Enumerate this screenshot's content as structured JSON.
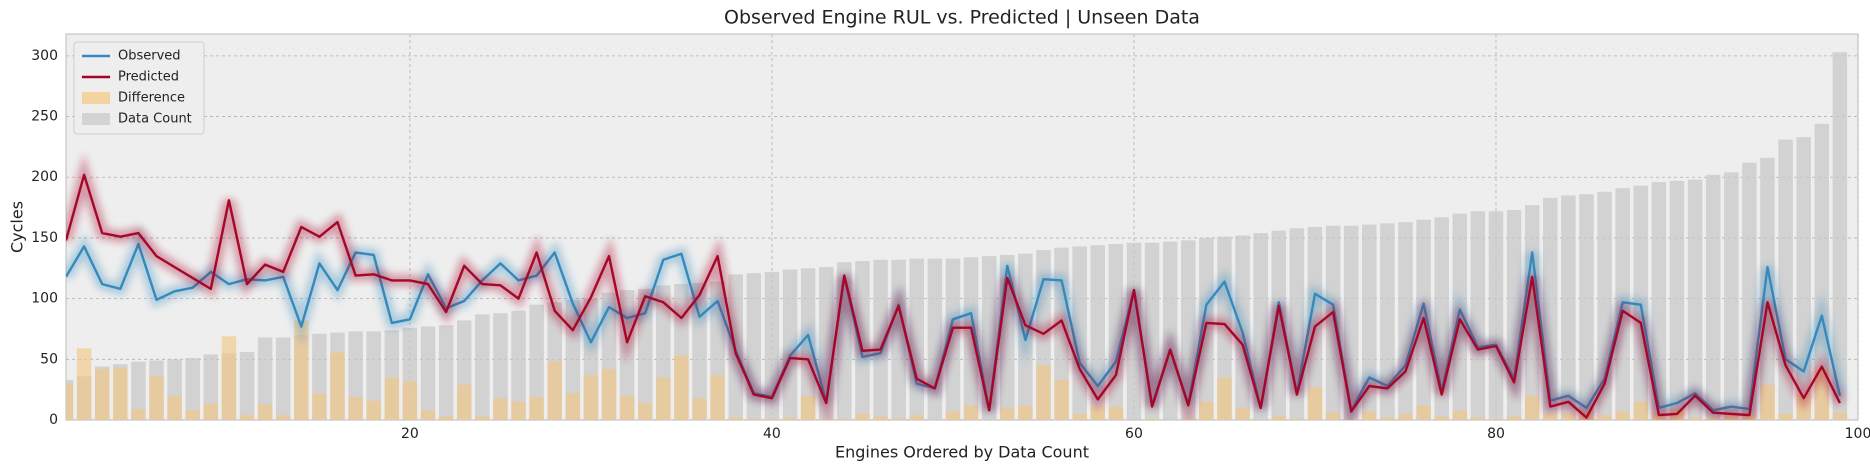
{
  "chart_data": {
    "type": "line",
    "title": "Observed Engine RUL vs. Predicted | Unseen Data",
    "xlabel": "Engines Ordered by Data Count",
    "ylabel": "Cycles",
    "x": [
      1,
      2,
      3,
      4,
      5,
      6,
      7,
      8,
      9,
      10,
      11,
      12,
      13,
      14,
      15,
      16,
      17,
      18,
      19,
      20,
      21,
      22,
      23,
      24,
      25,
      26,
      27,
      28,
      29,
      30,
      31,
      32,
      33,
      34,
      35,
      36,
      37,
      38,
      39,
      40,
      41,
      42,
      43,
      44,
      45,
      46,
      47,
      48,
      49,
      50,
      51,
      52,
      53,
      54,
      55,
      56,
      57,
      58,
      59,
      60,
      61,
      62,
      63,
      64,
      65,
      66,
      67,
      68,
      69,
      70,
      71,
      72,
      73,
      74,
      75,
      76,
      77,
      78,
      79,
      80,
      81,
      82,
      83,
      84,
      85,
      86,
      87,
      88,
      89,
      90,
      91,
      92,
      93,
      94,
      95,
      96,
      97,
      98,
      99
    ],
    "xlim": [
      1,
      100
    ],
    "xticks": [
      20,
      40,
      60,
      80,
      100
    ],
    "ylim": [
      0,
      318
    ],
    "yticks": [
      0,
      50,
      100,
      150,
      200,
      250,
      300
    ],
    "grid": true,
    "legend": "upper left",
    "series": [
      {
        "name": "Observed",
        "type": "line",
        "color": "#348ABD",
        "values": [
          118,
          143,
          112,
          108,
          145,
          99,
          106,
          109,
          122,
          112,
          116,
          115,
          118,
          77,
          129,
          107,
          138,
          136,
          80,
          83,
          120,
          92,
          98,
          115,
          129,
          115,
          119,
          138,
          96,
          64,
          93,
          84,
          88,
          132,
          137,
          85,
          98,
          57,
          22,
          19,
          53,
          70,
          15,
          118,
          52,
          55,
          95,
          30,
          26,
          83,
          88,
          8,
          127,
          66,
          116,
          115,
          47,
          28,
          48,
          107,
          12,
          58,
          13,
          95,
          114,
          72,
          10,
          97,
          22,
          104,
          95,
          8,
          35,
          28,
          45,
          96,
          24,
          91,
          60,
          62,
          34,
          138,
          16,
          20,
          10,
          34,
          97,
          95,
          10,
          14,
          22,
          8,
          11,
          9,
          126,
          50,
          40,
          86,
          20
        ]
      },
      {
        "name": "Predicted",
        "type": "line",
        "color": "#A60628",
        "values": [
          148,
          202,
          154,
          151,
          154,
          135,
          126,
          117,
          108,
          181,
          112,
          128,
          122,
          159,
          151,
          163,
          119,
          120,
          115,
          115,
          112,
          89,
          127,
          112,
          111,
          100,
          138,
          90,
          74,
          101,
          135,
          64,
          102,
          97,
          84,
          103,
          135,
          55,
          21,
          18,
          51,
          50,
          14,
          119,
          57,
          58,
          94,
          34,
          26,
          76,
          76,
          8,
          117,
          78,
          71,
          82,
          42,
          17,
          37,
          107,
          11,
          58,
          12,
          80,
          79,
          62,
          10,
          94,
          21,
          77,
          89,
          7,
          28,
          26,
          40,
          84,
          21,
          83,
          58,
          61,
          31,
          118,
          11,
          15,
          2,
          30,
          90,
          80,
          4,
          5,
          20,
          6,
          5,
          4,
          97,
          45,
          18,
          44,
          14
        ]
      },
      {
        "name": "Difference",
        "type": "bar",
        "color": "#F5C77E",
        "values": [
          30,
          59,
          42,
          43,
          9,
          36,
          20,
          8,
          14,
          69,
          4,
          13,
          4,
          82,
          22,
          56,
          19,
          16,
          35,
          32,
          8,
          3,
          29,
          3,
          18,
          15,
          19,
          48,
          22,
          37,
          42,
          20,
          14,
          35,
          53,
          18,
          37,
          2,
          1,
          1,
          2,
          20,
          1,
          1,
          5,
          3,
          1,
          4,
          0,
          7,
          12,
          0,
          10,
          12,
          45,
          33,
          5,
          11,
          11,
          0,
          1,
          0,
          1,
          15,
          35,
          10,
          0,
          3,
          1,
          27,
          6,
          1,
          7,
          2,
          5,
          12,
          3,
          8,
          2,
          1,
          3,
          20,
          5,
          5,
          8,
          4,
          7,
          15,
          6,
          9,
          2,
          2,
          6,
          5,
          29,
          5,
          22,
          42,
          6
        ]
      },
      {
        "name": "Data Count",
        "type": "bar",
        "color": "#C8C8C8",
        "values": [
          33,
          36,
          44,
          46,
          48,
          49,
          50,
          51,
          54,
          55,
          56,
          68,
          68,
          70,
          71,
          72,
          73,
          73,
          74,
          76,
          77,
          78,
          82,
          87,
          88,
          90,
          95,
          97,
          99,
          100,
          105,
          107,
          108,
          111,
          112,
          113,
          114,
          120,
          121,
          122,
          124,
          125,
          126,
          130,
          131,
          132,
          132,
          133,
          133,
          133,
          134,
          135,
          136,
          137,
          140,
          142,
          143,
          144,
          145,
          146,
          146,
          147,
          148,
          150,
          151,
          152,
          154,
          156,
          158,
          159,
          160,
          160,
          161,
          162,
          163,
          165,
          167,
          170,
          172,
          172,
          173,
          177,
          183,
          185,
          186,
          188,
          191,
          193,
          196,
          197,
          198,
          202,
          204,
          212,
          216,
          231,
          233,
          244,
          303
        ]
      }
    ]
  }
}
